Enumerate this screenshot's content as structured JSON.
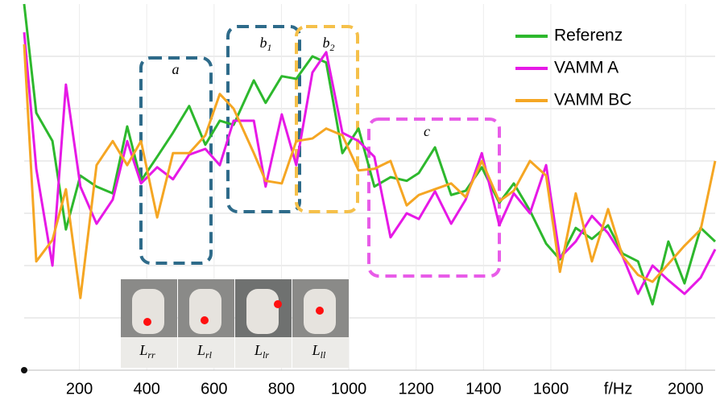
{
  "chart_data": {
    "type": "line",
    "x": [
      36,
      72,
      120,
      160,
      203,
      251,
      299,
      342,
      383,
      431,
      478,
      526,
      574,
      617,
      658,
      718,
      753,
      801,
      844,
      892,
      933,
      981,
      1029,
      1076,
      1124,
      1172,
      1208,
      1256,
      1304,
      1347,
      1395,
      1447,
      1490,
      1538,
      1586,
      1627,
      1674,
      1722,
      1770,
      1813,
      1859,
      1902,
      1949,
      1997,
      2045,
      2088
    ],
    "series": [
      {
        "name": "Referenz",
        "color": "#2db82d",
        "values": [
          7.0,
          4.92,
          4.38,
          2.69,
          3.72,
          3.51,
          3.38,
          4.66,
          3.62,
          4.08,
          4.54,
          5.05,
          4.31,
          4.77,
          4.69,
          5.54,
          5.11,
          5.62,
          5.57,
          6.0,
          5.88,
          4.15,
          4.62,
          3.51,
          3.69,
          3.62,
          3.77,
          4.26,
          3.35,
          3.43,
          3.88,
          3.2,
          3.57,
          3.05,
          2.42,
          2.12,
          2.72,
          2.51,
          2.77,
          2.23,
          2.08,
          1.26,
          2.46,
          1.66,
          2.72,
          2.46
        ]
      },
      {
        "name": "VAMM A",
        "color": "#e619e6",
        "values": [
          6.46,
          3.85,
          2.0,
          5.46,
          3.51,
          2.8,
          3.26,
          4.38,
          3.57,
          3.88,
          3.65,
          4.12,
          4.23,
          3.92,
          4.77,
          4.77,
          3.51,
          4.89,
          3.92,
          5.69,
          6.08,
          4.54,
          4.38,
          4.08,
          2.54,
          3.0,
          2.89,
          3.42,
          2.8,
          3.26,
          4.15,
          2.77,
          3.38,
          3.0,
          3.92,
          2.15,
          2.46,
          2.95,
          2.62,
          2.18,
          1.46,
          2.0,
          1.72,
          1.46,
          1.77,
          2.31
        ]
      },
      {
        "name": "VAMM BC",
        "color": "#f5a623",
        "values": [
          6.23,
          2.08,
          2.49,
          3.46,
          1.38,
          3.92,
          4.38,
          3.92,
          4.38,
          2.92,
          4.15,
          4.15,
          4.49,
          5.28,
          5.0,
          4.15,
          3.62,
          3.57,
          4.38,
          4.43,
          4.62,
          4.49,
          3.82,
          3.85,
          4.0,
          3.15,
          3.35,
          3.46,
          3.57,
          3.31,
          4.0,
          3.23,
          3.43,
          4.0,
          3.72,
          1.88,
          3.38,
          2.08,
          3.08,
          2.18,
          1.82,
          1.69,
          2.03,
          2.38,
          2.69,
          4.0
        ]
      }
    ],
    "xlim": [
      36,
      2088
    ],
    "xticks": [
      200,
      400,
      600,
      800,
      1000,
      1200,
      1400,
      1600,
      2000
    ],
    "xlabel": "f/Hz",
    "ylim": [
      0,
      7
    ],
    "yticks": [
      1,
      2,
      3,
      4,
      5,
      6
    ],
    "grid": true,
    "legend": "top-right",
    "annotations": [
      {
        "label": "a",
        "sub": "",
        "color": "#2e6b8a"
      },
      {
        "label": "b",
        "sub": "1",
        "color": "#2e6b8a"
      },
      {
        "label": "b",
        "sub": "2",
        "color": "#f5c04a"
      },
      {
        "label": "c",
        "sub": "",
        "color": "#e85ce8"
      }
    ],
    "insets": [
      {
        "label": "L",
        "sub": "rr"
      },
      {
        "label": "L",
        "sub": "rl"
      },
      {
        "label": "L",
        "sub": "lr"
      },
      {
        "label": "L",
        "sub": "ll"
      }
    ]
  }
}
